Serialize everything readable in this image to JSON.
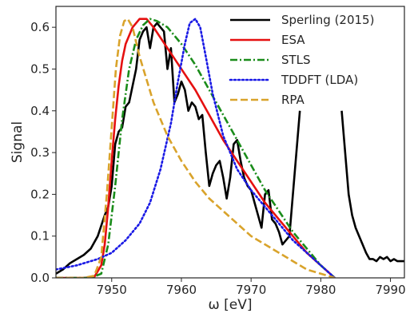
{
  "chart_data": {
    "type": "line",
    "title": "",
    "xlabel": "ω [eV]",
    "ylabel": "Signal",
    "xlim": [
      7942,
      7992
    ],
    "ylim": [
      0,
      0.65
    ],
    "xticks": [
      7950,
      7960,
      7970,
      7980,
      7990
    ],
    "yticks": [
      0.0,
      0.1,
      0.2,
      0.3,
      0.4,
      0.5,
      0.6
    ],
    "xtick_labels": [
      "7950",
      "7960",
      "7970",
      "7980",
      "7990"
    ],
    "ytick_labels": [
      "0.0",
      "0.1",
      "0.2",
      "0.3",
      "0.4",
      "0.5",
      "0.6"
    ],
    "grid": false,
    "legend_position": "top-right",
    "series": [
      {
        "name": "Sperling (2015)",
        "color": "#000000",
        "style": "solid",
        "x": [
          7942,
          7943,
          7944,
          7945,
          7946,
          7947,
          7948,
          7949,
          7949.5,
          7950,
          7950.5,
          7951,
          7951.5,
          7952,
          7952.5,
          7953,
          7953.5,
          7954,
          7954.5,
          7955,
          7955.5,
          7956,
          7956.5,
          7957,
          7957.5,
          7958,
          7958.5,
          7959,
          7959.5,
          7960,
          7960.5,
          7961,
          7961.5,
          7962,
          7962.5,
          7963,
          7963.5,
          7964,
          7964.5,
          7965,
          7965.5,
          7966,
          7966.5,
          7967,
          7967.5,
          7968,
          7968.5,
          7969,
          7969.5,
          7970,
          7970.5,
          7971,
          7971.5,
          7972,
          7972.5,
          7973,
          7973.5,
          7974,
          7974.5,
          7975,
          7975.5,
          7976,
          7976.5,
          7977,
          null,
          7983,
          7983.5,
          7984,
          7984.5,
          7985,
          7985.5,
          7986,
          7986.5,
          7987,
          7987.5,
          7988,
          7988.5,
          7989,
          7989.5,
          7990,
          7990.5,
          7991,
          7992
        ],
        "y": [
          0.01,
          0.02,
          0.035,
          0.045,
          0.055,
          0.07,
          0.1,
          0.15,
          0.17,
          0.22,
          0.32,
          0.35,
          0.36,
          0.41,
          0.42,
          0.46,
          0.5,
          0.57,
          0.59,
          0.6,
          0.55,
          0.6,
          0.61,
          0.6,
          0.59,
          0.5,
          0.55,
          0.42,
          0.44,
          0.47,
          0.45,
          0.4,
          0.42,
          0.41,
          0.38,
          0.39,
          0.3,
          0.22,
          0.25,
          0.27,
          0.28,
          0.24,
          0.19,
          0.24,
          0.32,
          0.33,
          0.28,
          0.24,
          0.22,
          0.21,
          0.18,
          0.15,
          0.12,
          0.2,
          0.21,
          0.14,
          0.13,
          0.11,
          0.08,
          0.09,
          0.1,
          0.2,
          0.3,
          0.4,
          null,
          0.4,
          0.3,
          0.2,
          0.15,
          0.12,
          0.1,
          0.08,
          0.06,
          0.045,
          0.045,
          0.04,
          0.05,
          0.045,
          0.05,
          0.04,
          0.045,
          0.04,
          0.04
        ]
      },
      {
        "name": "ESA",
        "color": "#e51010",
        "style": "solid",
        "x": [
          7942,
          7946,
          7947.5,
          7948.5,
          7949,
          7949.5,
          7950,
          7950.5,
          7951,
          7951.5,
          7952,
          7953,
          7954,
          7955,
          7956,
          7958,
          7960,
          7962,
          7964,
          7966,
          7968,
          7970,
          7972,
          7974,
          7976,
          7978,
          7980,
          7982
        ],
        "y": [
          0.0,
          0.0,
          0.002,
          0.03,
          0.08,
          0.17,
          0.28,
          0.38,
          0.46,
          0.52,
          0.56,
          0.6,
          0.62,
          0.62,
          0.6,
          0.55,
          0.5,
          0.45,
          0.39,
          0.33,
          0.28,
          0.23,
          0.18,
          0.14,
          0.1,
          0.06,
          0.03,
          0.0
        ]
      },
      {
        "name": "STLS",
        "color": "#1a8c1a",
        "style": "dashdot",
        "x": [
          7942,
          7947,
          7948.5,
          7949.5,
          7950.5,
          7951.5,
          7952.5,
          7953.5,
          7954.5,
          7955.5,
          7956.5,
          7958,
          7960,
          7962,
          7964,
          7966,
          7968,
          7970,
          7972,
          7974,
          7976,
          7978,
          7980,
          7982
        ],
        "y": [
          0.0,
          0.0,
          0.01,
          0.08,
          0.22,
          0.38,
          0.5,
          0.57,
          0.605,
          0.62,
          0.615,
          0.6,
          0.56,
          0.51,
          0.45,
          0.39,
          0.33,
          0.27,
          0.21,
          0.16,
          0.11,
          0.07,
          0.03,
          0.0
        ]
      },
      {
        "name": "TDDFT (LDA)",
        "color": "#1a1ae5",
        "style": "dotted",
        "x": [
          7942,
          7945,
          7948,
          7950,
          7952,
          7954,
          7955.5,
          7957,
          7958.5,
          7959.5,
          7960.5,
          7961.2,
          7962,
          7962.7,
          7963.5,
          7964.5,
          7966,
          7968,
          7970,
          7972,
          7974,
          7976,
          7978,
          7980,
          7982
        ],
        "y": [
          0.02,
          0.03,
          0.045,
          0.06,
          0.09,
          0.13,
          0.18,
          0.26,
          0.37,
          0.47,
          0.56,
          0.61,
          0.62,
          0.6,
          0.53,
          0.44,
          0.34,
          0.26,
          0.21,
          0.17,
          0.13,
          0.09,
          0.06,
          0.03,
          0.0
        ]
      },
      {
        "name": "RPA",
        "color": "#d9a32b",
        "style": "dashed",
        "x": [
          7942,
          7946,
          7947.5,
          7948.5,
          7949.3,
          7950,
          7950.6,
          7951.2,
          7951.8,
          7952.3,
          7953,
          7954,
          7956,
          7958,
          7960,
          7962,
          7964,
          7966,
          7968,
          7970,
          7972,
          7974,
          7976,
          7978,
          7980,
          7982
        ],
        "y": [
          0.0,
          0.0,
          0.005,
          0.05,
          0.2,
          0.36,
          0.5,
          0.58,
          0.615,
          0.62,
          0.6,
          0.53,
          0.42,
          0.34,
          0.28,
          0.23,
          0.19,
          0.16,
          0.13,
          0.1,
          0.08,
          0.06,
          0.04,
          0.02,
          0.01,
          0.0
        ]
      }
    ]
  }
}
